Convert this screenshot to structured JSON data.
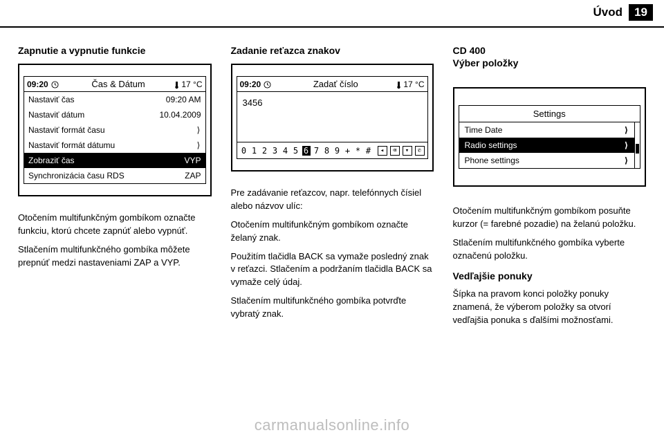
{
  "header": {
    "chapter": "Úvod",
    "page_num": "19"
  },
  "col1": {
    "heading": "Zapnutie a vypnutie funkcie",
    "lcd": {
      "time": "09:20",
      "title": "Čas & Dátum",
      "temp": "17 °C",
      "rows": [
        {
          "label": "Nastaviť čas",
          "value": "09:20 AM",
          "arrow": false,
          "selected": false
        },
        {
          "label": "Nastaviť dátum",
          "value": "10.04.2009",
          "arrow": false,
          "selected": false
        },
        {
          "label": "Nastaviť formát času",
          "value": "",
          "arrow": true,
          "selected": false
        },
        {
          "label": "Nastaviť formát dátumu",
          "value": "",
          "arrow": true,
          "selected": false
        },
        {
          "label": "Zobraziť čas",
          "value": "VYP",
          "arrow": false,
          "selected": true
        },
        {
          "label": "Synchronizácia času RDS",
          "value": "ZAP",
          "arrow": false,
          "selected": false
        }
      ]
    },
    "p1": "Otočením multifunkčným gombíkom označte funkciu, ktorú chcete zapnúť alebo vypnúť.",
    "p2": "Stlačením multifunkčného gombíka môžete prepnúť medzi nastaveniami ZAP a VYP."
  },
  "col2": {
    "heading": "Zadanie reťazca znakov",
    "lcd": {
      "time": "09:20",
      "title": "Zadať číslo",
      "temp": "17 °C",
      "entered": "3456",
      "chars": [
        "0",
        "1",
        "2",
        "3",
        "4",
        "5",
        "6",
        "7",
        "8",
        "9",
        "+",
        "*",
        "#"
      ],
      "selected_index": 6,
      "right_icons": [
        "◂",
        "⌫",
        "▾",
        "✆"
      ]
    },
    "p1": "Pre zadávanie reťazcov, napr. telefónnych čísiel alebo názvov ulíc:",
    "p2": "Otočením multifunkčným gombíkom označte želaný znak.",
    "p3": "Použitím tlačidla BACK sa vymaže posledný znak v reťazci. Stlačením a podržaním tlačidla BACK sa vymaže celý údaj.",
    "p4": "Stlačením multifunkčného gombíka potvrďte vybratý znak."
  },
  "col3": {
    "model": "CD 400",
    "subheading": "Výber položky",
    "lcd": {
      "title": "Settings",
      "rows": [
        {
          "label": "Time Date",
          "selected": false
        },
        {
          "label": "Radio settings",
          "selected": true
        },
        {
          "label": "Phone settings",
          "selected": false
        }
      ]
    },
    "p1": "Otočením multifunkčným gombíkom posuňte kurzor (= farebné pozadie) na želanú položku.",
    "p2": "Stlačením multifunkčného gombíka vyberte označenú položku.",
    "sub2": "Vedľajšie ponuky",
    "p3": "Šípka na pravom konci položky ponuky znamená, že výberom položky sa otvorí vedľajšia ponuka s ďalšími možnosťami."
  },
  "watermark": "carmanualsonline.info"
}
